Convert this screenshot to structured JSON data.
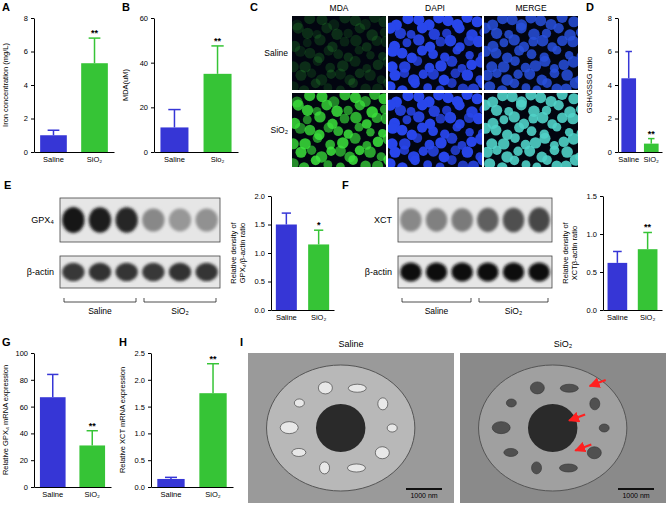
{
  "chart_data": [
    {
      "type": "bar",
      "panel_label": "A",
      "y_label": "Iron concentration (mg/L)",
      "categories": [
        "Saline",
        "SiO₂"
      ],
      "values": [
        1.0,
        5.3
      ],
      "errors": [
        0.3,
        1.5
      ],
      "colors": [
        "#3636d6",
        "#36c436"
      ],
      "ylim": [
        0,
        8
      ],
      "yticks": [
        0,
        2,
        4,
        6,
        8
      ],
      "annotations": [
        null,
        "**"
      ]
    },
    {
      "type": "bar",
      "panel_label": "B",
      "y_label": "MDA(uM)",
      "categories": [
        "Saline",
        "Sio₂"
      ],
      "values": [
        11,
        35
      ],
      "errors": [
        8,
        12.5
      ],
      "colors": [
        "#3636d6",
        "#36c436"
      ],
      "ylim": [
        0,
        60
      ],
      "yticks": [
        0,
        20,
        40,
        60
      ],
      "annotations": [
        null,
        "**"
      ]
    },
    {
      "type": "bar",
      "panel_label": "D",
      "y_label": "GSH/GSSG ratio",
      "categories": [
        "Saline",
        "SiO₂"
      ],
      "values": [
        4.4,
        0.5
      ],
      "errors": [
        1.6,
        0.3
      ],
      "colors": [
        "#3636d6",
        "#36c436"
      ],
      "ylim": [
        0,
        8
      ],
      "yticks": [
        0,
        2,
        4,
        6,
        8
      ],
      "annotations": [
        null,
        "**"
      ]
    },
    {
      "type": "bar",
      "panel_label": "E",
      "y_label": [
        "Relative density of",
        "GPX₄/β-actin ratio"
      ],
      "categories": [
        "Saline",
        "SiO₂"
      ],
      "values": [
        1.5,
        1.15
      ],
      "errors": [
        0.2,
        0.25
      ],
      "colors": [
        "#3636d6",
        "#36c436"
      ],
      "ylim": [
        0,
        2.0
      ],
      "yticks": [
        {
          "value": 0,
          "label": "0.0"
        },
        {
          "value": 0.5,
          "label": "0.5"
        },
        {
          "value": 1,
          "label": "1.0"
        },
        {
          "value": 1.5,
          "label": "1.5"
        },
        {
          "value": 2,
          "label": "2.0"
        }
      ],
      "annotations": [
        null,
        "*"
      ],
      "blot": {
        "rows": [
          "GPX₄",
          "β-actin"
        ],
        "groups": [
          "Saline",
          "SiO₂"
        ]
      }
    },
    {
      "type": "bar",
      "panel_label": "F",
      "y_label": [
        "Relative density of",
        "XCTβ-actin ratio"
      ],
      "categories": [
        "Saline",
        "SiO₂"
      ],
      "values": [
        0.62,
        0.8
      ],
      "errors": [
        0.15,
        0.22
      ],
      "colors": [
        "#3636d6",
        "#36c436"
      ],
      "ylim": [
        0,
        1.5
      ],
      "yticks": [
        {
          "value": 0,
          "label": "0.0"
        },
        {
          "value": 0.5,
          "label": "0.5"
        },
        {
          "value": 1,
          "label": "1.0"
        },
        {
          "value": 1.5,
          "label": "1.5"
        }
      ],
      "annotations": [
        null,
        "**"
      ],
      "blot": {
        "rows": [
          "XCT",
          "β-actin"
        ],
        "groups": [
          "Saline",
          "SiO₂"
        ]
      }
    },
    {
      "type": "bar",
      "panel_label": "G",
      "y_label": "Relative GPX₄ mRNA expression",
      "categories": [
        "Saline",
        "SiO₂"
      ],
      "values": [
        67,
        31
      ],
      "errors": [
        17,
        11
      ],
      "colors": [
        "#3636d6",
        "#36c436"
      ],
      "ylim": [
        0,
        100
      ],
      "yticks": [
        0,
        20,
        40,
        60,
        80,
        100
      ],
      "annotations": [
        null,
        "**"
      ]
    },
    {
      "type": "bar",
      "panel_label": "H",
      "y_label": "Relative XCT mRNA expression",
      "categories": [
        "Saline",
        "SiO₂"
      ],
      "values": [
        0.15,
        1.75
      ],
      "errors": [
        0.03,
        0.55
      ],
      "colors": [
        "#3636d6",
        "#36c436"
      ],
      "ylim": [
        0,
        2.5
      ],
      "yticks": [
        {
          "value": 0,
          "label": "0.0"
        },
        {
          "value": 0.5,
          "label": "0.5"
        },
        {
          "value": 1,
          "label": "1.0"
        },
        {
          "value": 1.5,
          "label": "1.5"
        },
        {
          "value": 2,
          "label": "2.0"
        },
        {
          "value": 2.5,
          "label": "2.5"
        }
      ],
      "annotations": [
        null,
        "**"
      ]
    }
  ],
  "images": [
    {
      "panel_label": "C",
      "columns": [
        "MDA",
        "DAPI",
        "MERGE"
      ],
      "rows": [
        "Saline",
        "SiO₂"
      ]
    },
    {
      "panel_label": "I",
      "titles": [
        "Saline",
        "SiO₂"
      ],
      "scale_bar": "1000 nm"
    }
  ]
}
